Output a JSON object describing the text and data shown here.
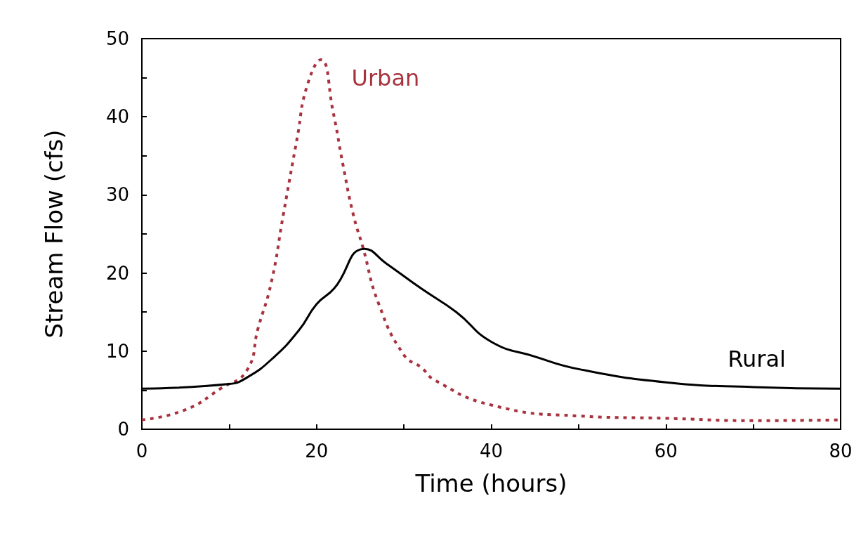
{
  "chart_data": {
    "type": "line",
    "xlabel": "Time (hours)",
    "ylabel": "Stream Flow (cfs)",
    "xlim": [
      0,
      80
    ],
    "ylim": [
      0,
      50
    ],
    "xticks": [
      0,
      {
        "value": 10,
        "label": null
      },
      20,
      {
        "value": 30,
        "label": null
      },
      40,
      {
        "value": 50,
        "label": null
      },
      60,
      {
        "value": 70,
        "label": null
      },
      80
    ],
    "yticks": [
      0,
      {
        "value": 5,
        "label": null
      },
      10,
      {
        "value": 15,
        "label": null
      },
      20,
      {
        "value": 25,
        "label": null
      },
      30,
      {
        "value": 35,
        "label": null
      },
      40,
      {
        "value": 45,
        "label": null
      },
      50
    ],
    "grid": false,
    "legend": false,
    "marker": "none",
    "series": [
      {
        "name": "Urban",
        "color": "#a8323e",
        "line_style": "dotted",
        "x": [
          0,
          5,
          9,
          12,
          13.3,
          14.8,
          16.2,
          17.8,
          18.9,
          20.5,
          21.9,
          23,
          24.2,
          25.3,
          27.1,
          30,
          32,
          33.5,
          40,
          50,
          60,
          70,
          80
        ],
        "values": [
          1.2,
          2.5,
          5.2,
          7.5,
          12.9,
          18.7,
          27.5,
          37.4,
          43.9,
          47.3,
          40.6,
          34,
          27.5,
          23.3,
          16.1,
          9.5,
          7.9,
          6.3,
          3.1,
          1.7,
          1.4,
          1.1,
          1.2
        ]
      },
      {
        "name": "Rural",
        "color": "#000000",
        "line_style": "solid",
        "x": [
          0,
          10,
          12,
          15,
          18,
          20,
          22,
          25.5,
          28,
          32,
          36,
          40,
          45,
          50,
          60,
          70,
          80
        ],
        "values": [
          5.2,
          5.8,
          6.6,
          9.1,
          12.7,
          16,
          18,
          23.1,
          21.2,
          18,
          15,
          11.2,
          9.3,
          7.7,
          6,
          5.4,
          5.2
        ]
      }
    ]
  }
}
